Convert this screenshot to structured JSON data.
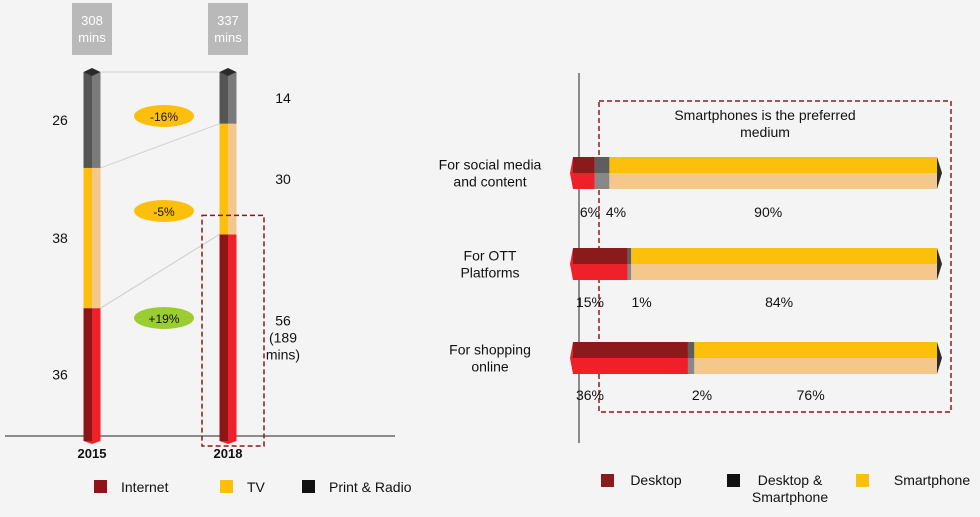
{
  "colors": {
    "internet_light": "#f0202a",
    "internet_dark": "#8f1416",
    "tv_light": "#f4c88c",
    "tv_dark": "#fcc00c",
    "print_light": "#7a7a7a",
    "print_dark": "#555555",
    "desktop": "#8b1a1a",
    "both": "#111111",
    "smartphone": "#fcc00c",
    "highlight": "#8b1a1a",
    "badge_neg": "#fcc00c",
    "badge_pos": "#9acd32",
    "total_box": "#b9b9b9"
  },
  "chart_data": [
    {
      "type": "bar",
      "stacked": true,
      "categories": [
        "2015",
        "2018"
      ],
      "totals": [
        "308\nmins",
        "337\nmins"
      ],
      "series": [
        {
          "name": "Internet",
          "values": [
            36,
            56
          ],
          "labels": [
            "36",
            "56\n(189\nmins)"
          ],
          "color_key": "internet"
        },
        {
          "name": "TV",
          "values": [
            38,
            30
          ],
          "labels": [
            "38",
            "30"
          ],
          "color_key": "tv"
        },
        {
          "name": "Print & Radio",
          "values": [
            26,
            14
          ],
          "labels": [
            "26",
            "14"
          ],
          "color_key": "print"
        }
      ],
      "changes": [
        {
          "series": "Print & Radio",
          "label": "-16%",
          "kind": "neg"
        },
        {
          "series": "TV",
          "label": "-5%",
          "kind": "neg"
        },
        {
          "series": "Internet",
          "label": "+19%",
          "kind": "pos"
        }
      ],
      "legend": [
        "Internet",
        "TV",
        "Print & Radio"
      ],
      "legend_placement": "bottom"
    },
    {
      "type": "bar",
      "orientation": "horizontal",
      "stacked": true,
      "categories": [
        "For social media\nand content",
        "For OTT\nPlatforms",
        "For shopping\nonline"
      ],
      "series": [
        {
          "name": "Desktop",
          "values": [
            6,
            15,
            36
          ],
          "labels": [
            "6%",
            "15%",
            "36%"
          ]
        },
        {
          "name": "Desktop & Smartphone",
          "values": [
            4,
            1,
            2
          ],
          "labels": [
            "4%",
            "1%",
            "2%"
          ]
        },
        {
          "name": "Smartphone",
          "values": [
            90,
            84,
            76
          ],
          "labels": [
            "90%",
            "84%",
            "76%"
          ]
        }
      ],
      "annotation": "Smartphones is the preferred\nmedium",
      "legend": [
        "Desktop",
        "Desktop &\nSmartphone",
        "Smartphone"
      ],
      "legend_placement": "bottom"
    }
  ]
}
